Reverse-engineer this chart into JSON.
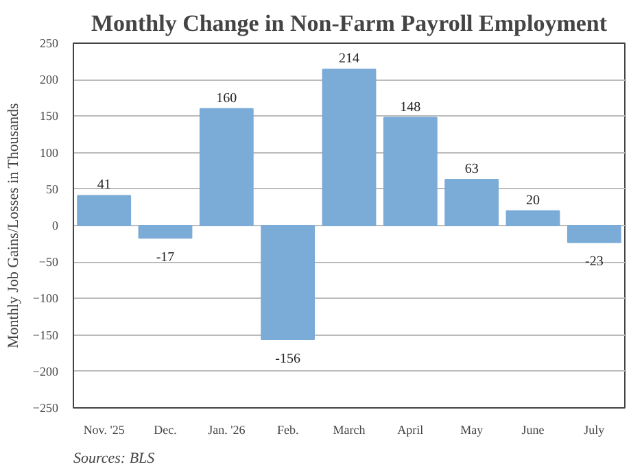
{
  "chart_data": {
    "type": "bar",
    "title": "Monthly Change in Non-Farm Payroll Employment",
    "ylabel": "Monthly Job Gains/Losses in Thousands",
    "categories": [
      "Nov. '25",
      "Dec.",
      "Jan. '26",
      "Feb.",
      "March",
      "April",
      "May",
      "June",
      "July"
    ],
    "values": [
      41,
      -17,
      160,
      -156,
      214,
      148,
      63,
      20,
      -23
    ],
    "color": "#7babd7",
    "ylim": [
      -250,
      250
    ],
    "yticks": [
      -250,
      -200,
      -150,
      -100,
      -50,
      0,
      50,
      100,
      150,
      200,
      250
    ],
    "grid": "y",
    "data_labels": true,
    "annotations": [
      "Sources: BLS"
    ]
  }
}
